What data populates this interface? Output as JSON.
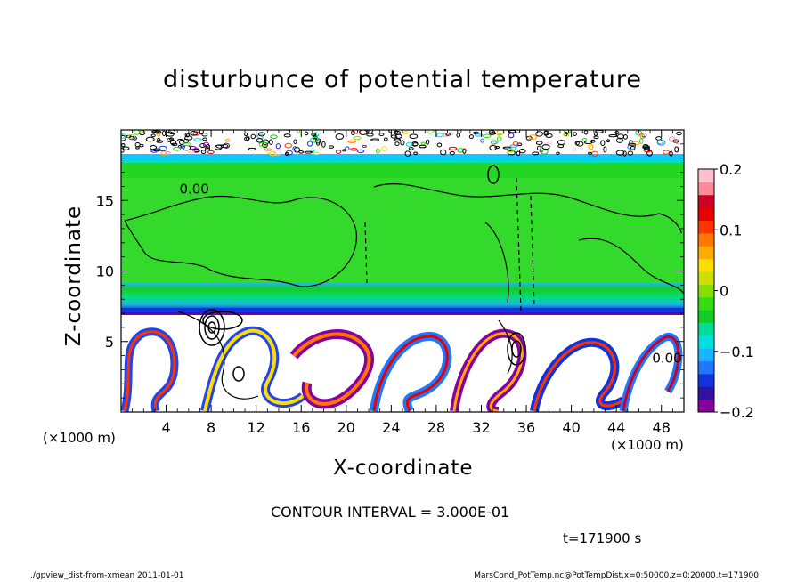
{
  "chart_data": {
    "type": "heatmap",
    "title": "disturbunce of potential temperature",
    "xlabel": "X-coordinate",
    "ylabel": "Z-coordinate",
    "x_unit_label": "(×1000 m)",
    "xlim": [
      0,
      50
    ],
    "ylim": [
      0,
      20
    ],
    "x_ticks": [
      4,
      8,
      12,
      16,
      20,
      24,
      28,
      32,
      36,
      40,
      44,
      48
    ],
    "y_ticks": [
      5,
      10,
      15
    ],
    "colorbar": {
      "range": [
        -0.2,
        0.2
      ],
      "ticks": [
        {
          "value": 0.2,
          "label": "0.2"
        },
        {
          "value": 0.1,
          "label": "0.1"
        },
        {
          "value": 0,
          "label": "0"
        },
        {
          "value": -0.1,
          "label": "−0.1"
        },
        {
          "value": -0.2,
          "label": "−0.2"
        }
      ],
      "colors": [
        "#8800a0",
        "#3311a0",
        "#1133dd",
        "#1e78ff",
        "#18b4ff",
        "#00e0e0",
        "#00dd99",
        "#11cc22",
        "#33dd11",
        "#88dd00",
        "#cce000",
        "#ffdd00",
        "#ffaa00",
        "#ff7700",
        "#ff3300",
        "#e80000",
        "#cc0022",
        "#ff8899",
        "#ffc0cc"
      ]
    },
    "contour_labels": [
      {
        "text": "0.00",
        "x": 6.5,
        "z": 15.5
      },
      {
        "text": "0.00",
        "x": 48.5,
        "z": 3.5
      }
    ],
    "annotations": [
      "CONTOUR INTERVAL = 3.000E-01",
      "t=171900 s"
    ]
  },
  "footer": {
    "left": "./gpview_dist-from-xmean   2011-01-01",
    "right": "MarsCond_PotTemp.nc@PotTempDist,x=0:50000,z=0:20000,t=171900"
  },
  "colors": {
    "background": "#ffffff",
    "ink": "#000000"
  }
}
